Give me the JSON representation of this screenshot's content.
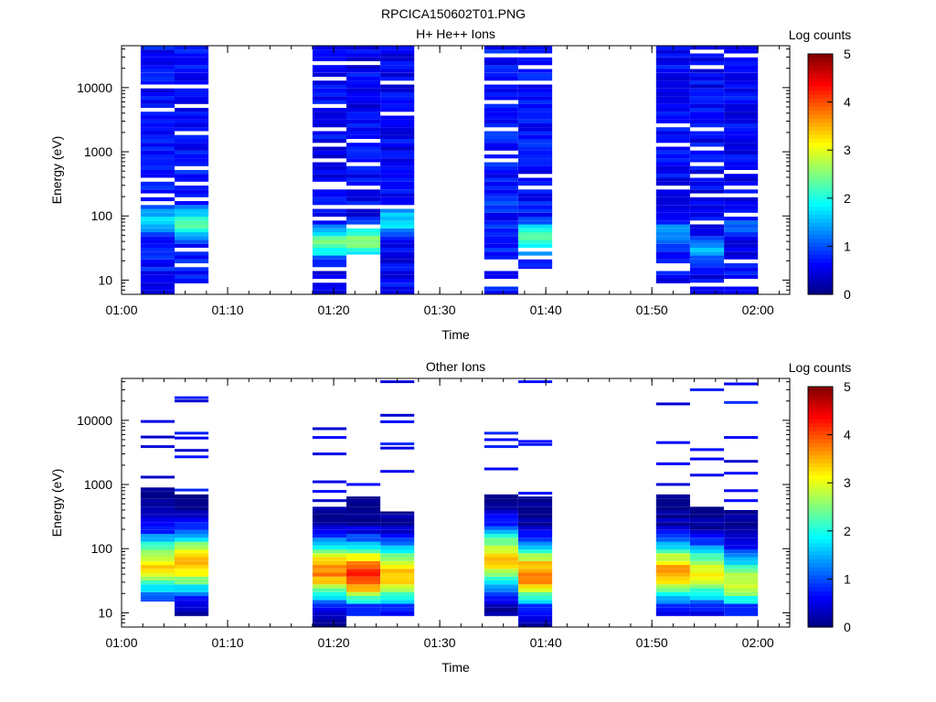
{
  "figure_title": "RPCICA150602T01.PNG",
  "colorbar_label": "Log counts",
  "colormap": [
    "#00007f",
    "#0000ff",
    "#007fff",
    "#00ffff",
    "#7fff7f",
    "#ffff00",
    "#ff7f00",
    "#ff0000",
    "#7f0000"
  ],
  "chart_data": [
    {
      "type": "heatmap",
      "title": "H+ He++ Ions",
      "xlabel": "Time",
      "ylabel": "Energy (eV)",
      "yscale": "log",
      "xlim_min": [
        0,
        63
      ],
      "ylim": [
        6,
        45000
      ],
      "xticks": [
        0,
        10,
        20,
        30,
        40,
        50,
        60
      ],
      "xtick_labels": [
        "01:00",
        "01:10",
        "01:20",
        "01:30",
        "01:40",
        "01:50",
        "02:00"
      ],
      "yticks": [
        10,
        100,
        1000,
        10000
      ],
      "ytick_labels": [
        "10",
        "100",
        "1000",
        "10000"
      ],
      "colorbar_range": [
        0,
        5
      ],
      "colorbar_ticks": [
        "0",
        "1",
        "2",
        "3",
        "4",
        "5"
      ],
      "columns": [
        {
          "t0": 1.8,
          "t1": 5.0,
          "emin": 6,
          "emax": 45000,
          "low_max": 1.6,
          "low_peak_e": 90,
          "high": 0.7,
          "gaps": [
            170,
            200,
            390,
            4400,
            11000
          ]
        },
        {
          "t0": 5.0,
          "t1": 8.2,
          "emin": 9,
          "emax": 45000,
          "low_max": 2.3,
          "low_peak_e": 75,
          "high": 0.7,
          "gaps": [
            16,
            28,
            190,
            330,
            580,
            1850,
            4900,
            10500
          ]
        },
        {
          "t0": 18.0,
          "t1": 21.2,
          "emin": 6,
          "emax": 45000,
          "low_max": 2.3,
          "low_peak_e": 38,
          "high": 0.6,
          "gaps": [
            10,
            14,
            90,
            130,
            270,
            340,
            750,
            1250,
            2400,
            5200,
            13000,
            23000
          ]
        },
        {
          "t0": 21.2,
          "t1": 24.4,
          "emin": 25,
          "emax": 45000,
          "low_max": 2.5,
          "low_peak_e": 42,
          "high": 0.6,
          "gaps": [
            70,
            130,
            260,
            600,
            1500,
            25000
          ]
        },
        {
          "t0": 24.4,
          "t1": 27.6,
          "emin": 6,
          "emax": 45000,
          "low_max": 1.7,
          "low_peak_e": 85,
          "high": 0.6,
          "gaps": [
            140,
            4200,
            12000
          ]
        },
        {
          "t0": 34.2,
          "t1": 37.4,
          "emin": 6,
          "emax": 45000,
          "low_max": 1.1,
          "low_peak_e": 160,
          "high": 0.7,
          "gaps": [
            9,
            10,
            14,
            17,
            21,
            700,
            1000,
            2200,
            5800,
            12000,
            31000
          ]
        },
        {
          "t0": 37.4,
          "t1": 40.6,
          "emin": 15,
          "emax": 45000,
          "low_max": 2.3,
          "low_peak_e": 45,
          "high": 0.7,
          "gaps": [
            22,
            30,
            270,
            450,
            12000,
            21000,
            31000
          ]
        },
        {
          "t0": 50.4,
          "t1": 53.6,
          "emin": 9,
          "emax": 45000,
          "low_max": 1.5,
          "low_peak_e": 50,
          "high": 0.6,
          "gaps": [
            14,
            17,
            260,
            1200,
            2700
          ]
        },
        {
          "t0": 53.6,
          "t1": 56.8,
          "emin": 6,
          "emax": 45000,
          "low_max": 1.4,
          "low_peak_e": 30,
          "high": 0.6,
          "gaps": [
            9,
            80,
            200,
            400,
            620,
            1100,
            2100,
            21000,
            35000
          ]
        },
        {
          "t0": 56.8,
          "t1": 60.0,
          "emin": 6,
          "emax": 45000,
          "low_max": 1.0,
          "low_peak_e": 70,
          "high": 0.6,
          "gaps": [
            9,
            10,
            20,
            100,
            200,
            260,
            480,
            33000
          ]
        }
      ]
    },
    {
      "type": "heatmap",
      "title": "Other Ions",
      "xlabel": "Time",
      "ylabel": "Energy (eV)",
      "yscale": "log",
      "xlim_min": [
        0,
        63
      ],
      "ylim": [
        6,
        45000
      ],
      "xticks": [
        0,
        10,
        20,
        30,
        40,
        50,
        60
      ],
      "xtick_labels": [
        "01:00",
        "01:10",
        "01:20",
        "01:30",
        "01:40",
        "01:50",
        "02:00"
      ],
      "yticks": [
        10,
        100,
        1000,
        10000
      ],
      "ytick_labels": [
        "10",
        "100",
        "1000",
        "10000"
      ],
      "colorbar_range": [
        0,
        5
      ],
      "colorbar_ticks": [
        "0",
        "1",
        "2",
        "3",
        "4",
        "5"
      ],
      "columns": [
        {
          "t0": 1.8,
          "t1": 5.0,
          "emin": 15,
          "emax": 900,
          "peak": 3.2,
          "peak_e": 55,
          "lines": [
            1300,
            3900,
            5500,
            9600
          ]
        },
        {
          "t0": 5.0,
          "t1": 8.2,
          "emin": 9,
          "emax": 700,
          "peak": 3.5,
          "peak_e": 60,
          "lines": [
            820,
            2700,
            3400,
            5300,
            6300,
            20000,
            22500
          ]
        },
        {
          "t0": 18.0,
          "t1": 21.2,
          "emin": 6,
          "emax": 450,
          "peak": 3.8,
          "peak_e": 45,
          "lines": [
            560,
            780,
            1100,
            3000,
            5400,
            7400
          ]
        },
        {
          "t0": 21.2,
          "t1": 24.4,
          "emin": 9,
          "emax": 650,
          "peak": 4.3,
          "peak_e": 40,
          "lines": [
            1000
          ]
        },
        {
          "t0": 24.4,
          "t1": 27.6,
          "emin": 9,
          "emax": 380,
          "peak": 3.5,
          "peak_e": 40,
          "lines": [
            1600,
            3700,
            4300,
            9500,
            12000,
            40000
          ]
        },
        {
          "t0": 34.2,
          "t1": 37.4,
          "emin": 9,
          "emax": 700,
          "peak": 3.3,
          "peak_e": 70,
          "lines": [
            1750,
            3900,
            5000,
            6300
          ]
        },
        {
          "t0": 37.4,
          "t1": 40.6,
          "emin": 6,
          "emax": 650,
          "peak": 3.8,
          "peak_e": 40,
          "lines": [
            730,
            4200,
            4700,
            40000
          ]
        },
        {
          "t0": 50.4,
          "t1": 53.6,
          "emin": 9,
          "emax": 700,
          "peak": 3.5,
          "peak_e": 45,
          "lines": [
            1000,
            2100,
            4500,
            18000
          ]
        },
        {
          "t0": 53.6,
          "t1": 56.8,
          "emin": 9,
          "emax": 450,
          "peak": 3.0,
          "peak_e": 40,
          "lines": [
            1400,
            2500,
            3500,
            30000
          ]
        },
        {
          "t0": 56.8,
          "t1": 60.0,
          "emin": 9,
          "emax": 400,
          "peak": 2.8,
          "peak_e": 30,
          "lines": [
            560,
            800,
            1500,
            2300,
            5400,
            19000,
            37000
          ]
        }
      ]
    }
  ]
}
